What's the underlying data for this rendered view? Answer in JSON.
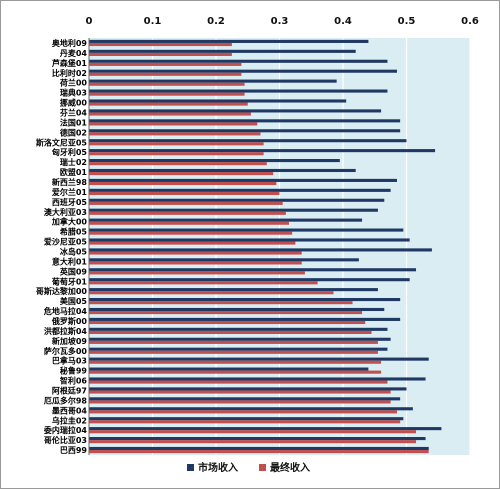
{
  "chart_data": {
    "type": "bar",
    "orientation": "horizontal",
    "xlim": [
      0,
      0.6
    ],
    "ticks": [
      "0",
      "0.1",
      "0.2",
      "0.3",
      "0.4",
      "0.5",
      "0.6"
    ],
    "grid": true,
    "legend_position": "bottom-right",
    "colors": {
      "plot_background": "#daedf3",
      "market": "#1f3864",
      "final": "#c0504d"
    },
    "categories": [
      "奥地利09",
      "丹麦04",
      "芦森堡01",
      "比利时02",
      "荷兰00",
      "瑞典03",
      "挪威00",
      "芬兰04",
      "法国01",
      "德国02",
      "斯洛文尼亚05",
      "匈牙利05",
      "瑞士02",
      "欧盟01",
      "新西兰98",
      "爱尔兰01",
      "西班牙05",
      "澳大利亚03",
      "加拿大00",
      "希腊05",
      "爱沙尼亚05",
      "冰岛05",
      "意大利01",
      "英国09",
      "葡萄牙01",
      "哥斯达黎加00",
      "美国05",
      "危地马拉04",
      "俄罗斯00",
      "洪都拉斯04",
      "新加坡09",
      "萨尔瓦多00",
      "巴拿马03",
      "秘鲁99",
      "智利06",
      "阿根廷97",
      "厄瓜多尔98",
      "墨西哥04",
      "乌拉圭02",
      "委内瑞拉04",
      "哥伦比亚03",
      "巴西99"
    ],
    "series": [
      {
        "name": "市场收入",
        "values": [
          0.44,
          0.42,
          0.47,
          0.485,
          0.39,
          0.47,
          0.405,
          0.46,
          0.49,
          0.49,
          0.5,
          0.545,
          0.395,
          0.42,
          0.485,
          0.475,
          0.465,
          0.455,
          0.43,
          0.495,
          0.505,
          0.54,
          0.425,
          0.515,
          0.505,
          0.455,
          0.49,
          0.465,
          0.49,
          0.47,
          0.475,
          0.47,
          0.535,
          0.44,
          0.53,
          0.5,
          0.49,
          0.51,
          0.495,
          0.555,
          0.53,
          0.535
        ]
      },
      {
        "name": "最终收入",
        "values": [
          0.225,
          0.225,
          0.24,
          0.24,
          0.245,
          0.245,
          0.25,
          0.255,
          0.265,
          0.27,
          0.275,
          0.275,
          0.28,
          0.29,
          0.295,
          0.3,
          0.305,
          0.31,
          0.315,
          0.32,
          0.325,
          0.335,
          0.335,
          0.34,
          0.36,
          0.385,
          0.415,
          0.43,
          0.435,
          0.445,
          0.455,
          0.455,
          0.46,
          0.46,
          0.47,
          0.475,
          0.475,
          0.485,
          0.49,
          0.515,
          0.515,
          0.535
        ]
      }
    ]
  }
}
